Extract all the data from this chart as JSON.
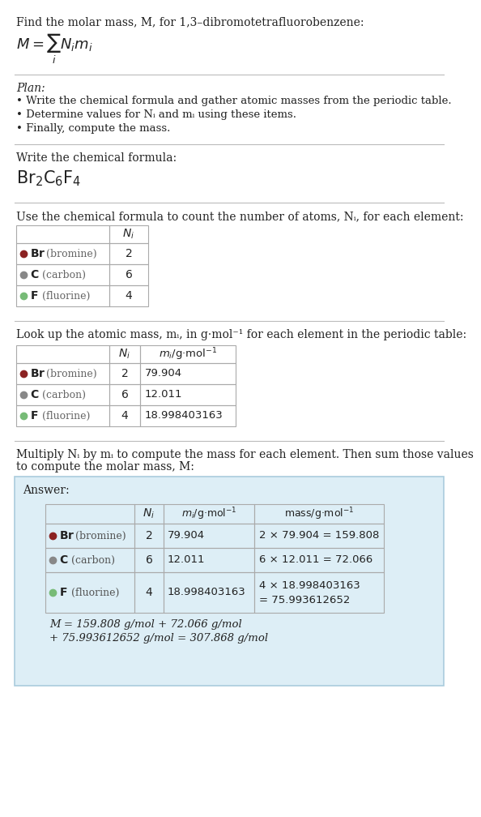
{
  "title_line": "Find the molar mass, M, for 1,3–dibromotetrafluorobenzene:",
  "bg_color": "#ffffff",
  "plan_header": "Plan:",
  "plan_bullets": [
    "• Write the chemical formula and gather atomic masses from the periodic table.",
    "• Determine values for Nᵢ and mᵢ using these items.",
    "• Finally, compute the mass."
  ],
  "formula_section_label": "Write the chemical formula:",
  "table1_header": "Use the chemical formula to count the number of atoms, Nᵢ, for each element:",
  "table2_header_part1": "Look up the atomic mass, mᵢ, in g·mol⁻¹ for each element in the periodic table:",
  "table3_header_line1": "Multiply Nᵢ by mᵢ to compute the mass for each element. Then sum those values",
  "table3_header_line2": "to compute the molar mass, M:",
  "elements": [
    {
      "symbol": "Br",
      "name": "bromine",
      "color": "#8b2222",
      "Ni": 2,
      "mi": "79.904",
      "mass_eq1": "2 × 79.904 = 159.808",
      "mass_eq2": ""
    },
    {
      "symbol": "C",
      "name": "carbon",
      "color": "#888888",
      "Ni": 6,
      "mi": "12.011",
      "mass_eq1": "6 × 12.011 = 72.066",
      "mass_eq2": ""
    },
    {
      "symbol": "F",
      "name": "fluorine",
      "color": "#77bb77",
      "Ni": 4,
      "mi": "18.998403163",
      "mass_eq1": "4 × 18.998403163",
      "mass_eq2": "= 75.993612652"
    }
  ],
  "answer_bg": "#ddeef6",
  "answer_border": "#aaccdd",
  "answer_label": "Answer:",
  "final_eq_line1": "M = 159.808 g/mol + 72.066 g/mol",
  "final_eq_line2": "+ 75.993612652 g/mol = 307.868 g/mol",
  "table_border_color": "#aaaaaa",
  "separator_color": "#bbbbbb"
}
